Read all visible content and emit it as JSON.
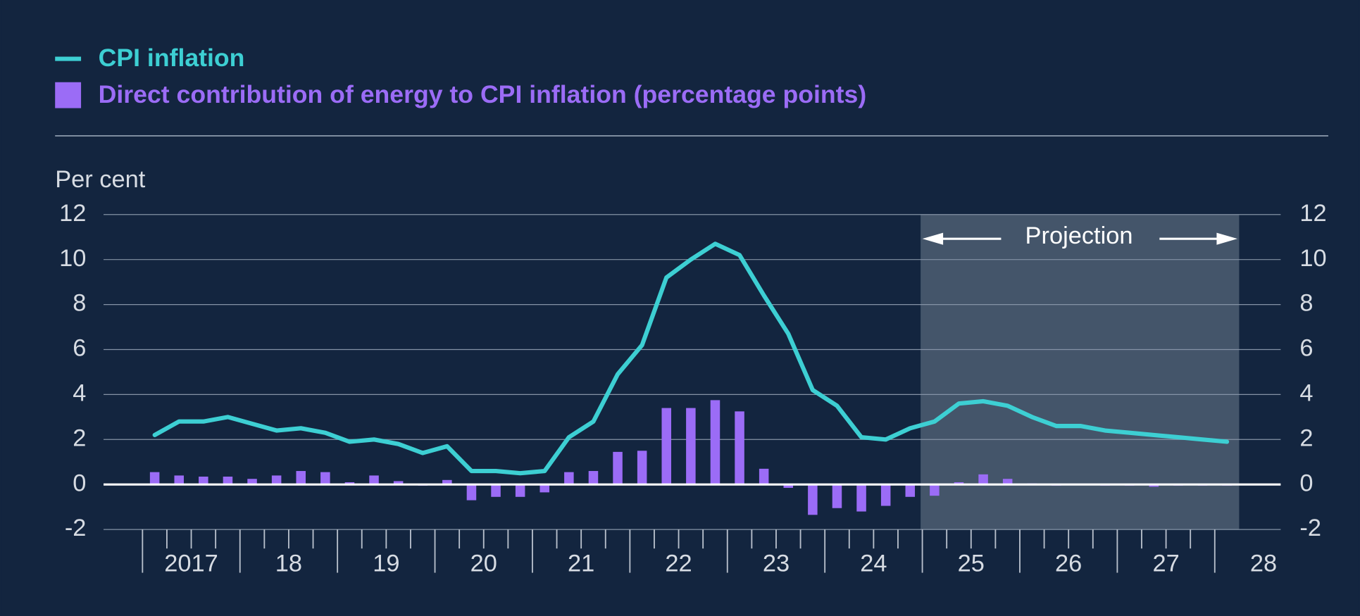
{
  "chart_data": {
    "type": "bar_line",
    "y_axis_label": "Per cent",
    "annotation": "Projection",
    "categories": [
      null,
      null,
      null,
      null,
      null,
      null,
      null,
      null,
      null,
      null,
      null,
      null,
      null,
      null,
      null,
      null,
      null,
      null,
      null,
      null,
      null,
      null,
      null,
      null,
      null,
      null,
      null,
      null,
      null,
      null,
      null,
      null,
      null,
      null,
      null,
      null,
      null,
      null,
      null,
      null,
      null,
      null,
      null,
      null,
      null
    ],
    "year_labels": [
      "2017",
      "18",
      "19",
      "20",
      "21",
      "22",
      "23",
      "24",
      "25",
      "26",
      "27",
      "28"
    ],
    "series": [
      {
        "name": "CPI inflation",
        "type": "line",
        "color": "#3dcfd3",
        "values": [
          2.2,
          2.8,
          2.8,
          3.0,
          2.7,
          2.4,
          2.5,
          2.3,
          1.9,
          2.0,
          1.8,
          1.4,
          1.7,
          0.6,
          0.6,
          0.5,
          0.6,
          2.1,
          2.8,
          4.9,
          6.2,
          9.2,
          10.0,
          10.7,
          10.2,
          8.4,
          6.7,
          4.2,
          3.5,
          2.1,
          2.0,
          2.5,
          2.8,
          3.6,
          3.7,
          3.5,
          3.0,
          2.6,
          2.6,
          2.4,
          2.3,
          2.2,
          2.1,
          2.0,
          1.9
        ]
      },
      {
        "name": "Direct contribution of energy to CPI inflation (percentage points)",
        "type": "bar",
        "color": "#9b6cf6",
        "values": [
          0.55,
          0.4,
          0.35,
          0.35,
          0.25,
          0.4,
          0.6,
          0.55,
          0.1,
          0.4,
          0.15,
          -0.05,
          0.2,
          -0.7,
          -0.55,
          -0.55,
          -0.35,
          0.55,
          0.6,
          1.45,
          1.5,
          3.4,
          3.4,
          3.75,
          3.25,
          0.7,
          -0.15,
          -1.35,
          -1.05,
          -1.2,
          -0.95,
          -0.55,
          -0.5,
          0.1,
          0.45,
          0.25,
          0.05,
          -0.05,
          0.0,
          -0.05,
          -0.05,
          -0.1,
          -0.05,
          -0.05,
          -0.05
        ]
      }
    ],
    "ylim": [
      -2,
      12
    ],
    "yticks": [
      -2,
      0,
      2,
      4,
      6,
      8,
      10,
      12
    ],
    "y2lim": [
      -2,
      12
    ],
    "y2ticks": [
      -2,
      0,
      2,
      4,
      6,
      8,
      10,
      12
    ],
    "grid": true
  }
}
